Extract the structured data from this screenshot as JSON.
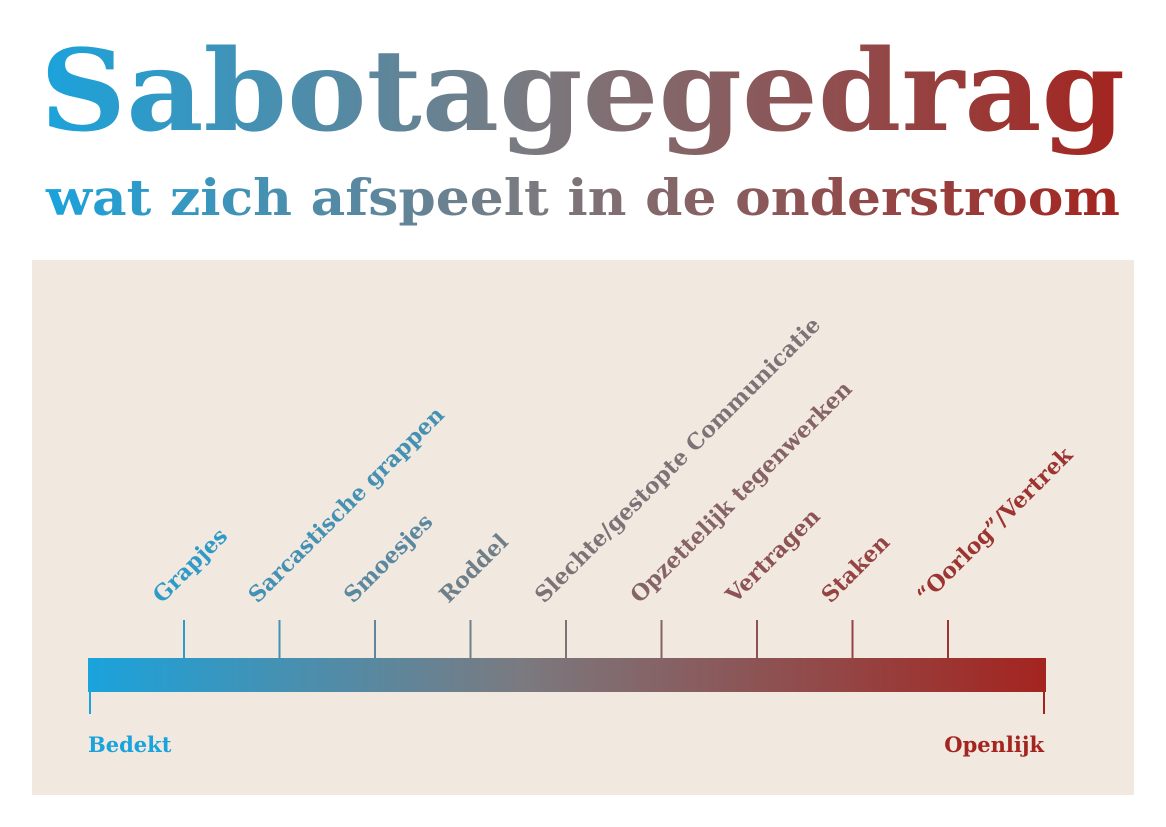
{
  "header": {
    "title": "Sabotagegedrag",
    "subtitle": "wat zich afspeelt in de onderstroom"
  },
  "scale": {
    "items": [
      "Grapjes",
      "Sarcastische grappen",
      "Smoesjes",
      "Roddel",
      "Slechte/gestopte Communicatie",
      "Opzettelijk tegenwerken",
      "Vertragen",
      "Staken",
      "“Oorlog”/Vertrek"
    ],
    "start_label": "Bedekt",
    "end_label": "Openlijk"
  }
}
